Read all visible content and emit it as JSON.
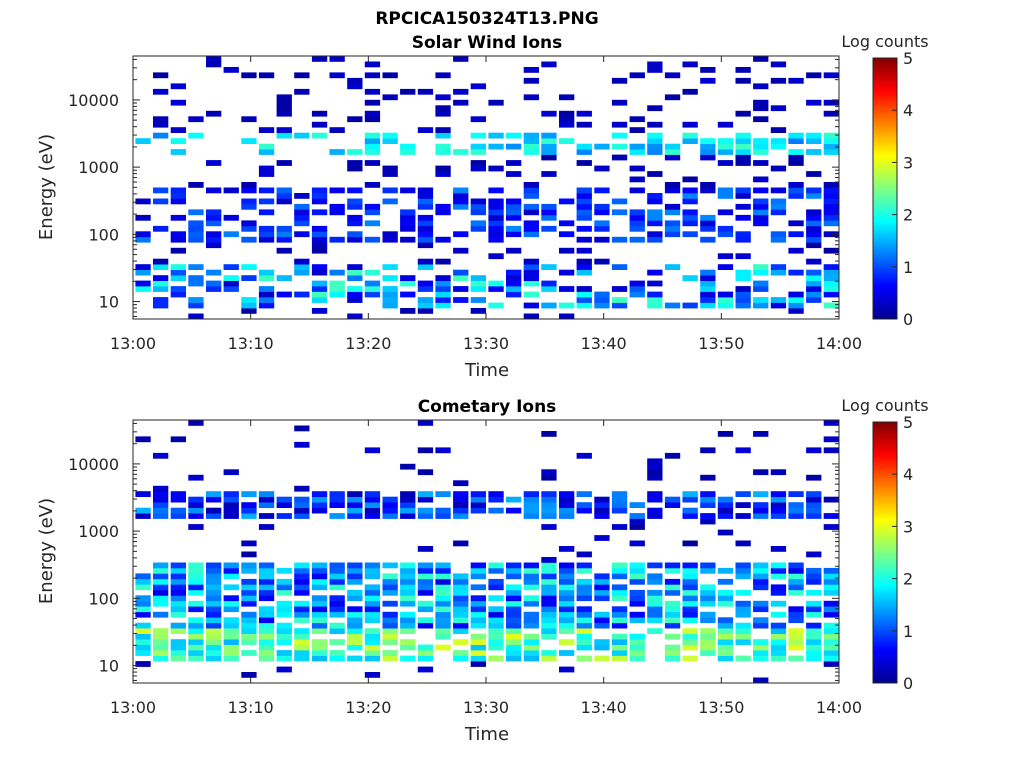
{
  "figure_title": "RPCICA150324T13.PNG",
  "colormap_stops": [
    "#00008f",
    "#0000ff",
    "#0080ff",
    "#00ffff",
    "#80ff80",
    "#ffff00",
    "#ff8000",
    "#ff0000",
    "#800000"
  ],
  "chart_data": [
    {
      "type": "heatmap",
      "title": "Solar Wind Ions",
      "xlabel": "Time",
      "ylabel": "Energy (eV)",
      "x_tick_labels": [
        "13:00",
        "13:10",
        "13:20",
        "13:30",
        "13:40",
        "13:50",
        "14:00"
      ],
      "x_range_minutes": [
        0,
        60
      ],
      "y_scale": "log",
      "y_ticks": [
        10,
        100,
        1000,
        10000
      ],
      "y_tick_labels": [
        "10",
        "100",
        "1000",
        "10000"
      ],
      "y_range": [
        5.5,
        45000
      ],
      "colorbar": {
        "label": "Log counts",
        "range": [
          0,
          5
        ],
        "tick_labels": [
          "0",
          "1",
          "2",
          "3",
          "4",
          "5"
        ]
      },
      "grid": false,
      "column_minutes": [
        0.2,
        1.7,
        3.2,
        4.7,
        6.2,
        7.7,
        9.2,
        10.7,
        12.2,
        13.7,
        15.2,
        16.7,
        18.2,
        19.7,
        21.2,
        22.7,
        24.2,
        25.7,
        27.2,
        28.7,
        30.2,
        31.7,
        33.2,
        34.7,
        36.2,
        37.7,
        39.2,
        40.7,
        42.2,
        43.7,
        45.2,
        46.7,
        48.2,
        49.7,
        51.2,
        52.7,
        54.2,
        55.7,
        57.2,
        58.7
      ],
      "features": [
        {
          "name": "narrow lines ~2.1 keV",
          "energy_range_eV": [
            1900,
            2500
          ],
          "log_counts_range": [
            1.2,
            2.2
          ]
        },
        {
          "name": "band 100-400 eV",
          "energy_range_eV": [
            100,
            400
          ],
          "log_counts_range": [
            0.3,
            1.3
          ]
        },
        {
          "name": "low-energy patches 10-30 eV",
          "energy_range_eV": [
            10,
            30
          ],
          "log_counts_range": [
            0.3,
            2.2
          ]
        }
      ]
    },
    {
      "type": "heatmap",
      "title": "Cometary Ions",
      "xlabel": "Time",
      "ylabel": "Energy (eV)",
      "x_tick_labels": [
        "13:00",
        "13:10",
        "13:20",
        "13:30",
        "13:40",
        "13:50",
        "14:00"
      ],
      "x_range_minutes": [
        0,
        60
      ],
      "y_scale": "log",
      "y_ticks": [
        10,
        100,
        1000,
        10000
      ],
      "y_tick_labels": [
        "10",
        "100",
        "1000",
        "10000"
      ],
      "y_range": [
        5.5,
        45000
      ],
      "colorbar": {
        "label": "Log counts",
        "range": [
          0,
          5
        ],
        "tick_labels": [
          "0",
          "1",
          "2",
          "3",
          "4",
          "5"
        ]
      },
      "grid": false,
      "column_minutes": [
        0.2,
        1.7,
        3.2,
        4.7,
        6.2,
        7.7,
        9.2,
        10.7,
        12.2,
        13.7,
        15.2,
        16.7,
        18.2,
        19.7,
        21.2,
        22.7,
        24.2,
        25.7,
        27.2,
        28.7,
        30.2,
        31.7,
        33.2,
        34.7,
        36.2,
        37.7,
        39.2,
        40.7,
        42.2,
        43.7,
        45.2,
        46.7,
        48.2,
        49.7,
        51.2,
        52.7,
        54.2,
        55.7,
        57.2,
        58.7
      ],
      "features": [
        {
          "name": "sparse lines 2-3 keV",
          "energy_range_eV": [
            2000,
            3000
          ],
          "log_counts_range": [
            0.2,
            1.5
          ]
        },
        {
          "name": "broad band 30-300 eV",
          "energy_range_eV": [
            30,
            300
          ],
          "log_counts_range": [
            0.5,
            2.2
          ]
        },
        {
          "name": "peak 15-30 eV",
          "energy_range_eV": [
            15,
            30
          ],
          "log_counts_range": [
            1.5,
            3.0
          ]
        }
      ]
    }
  ]
}
